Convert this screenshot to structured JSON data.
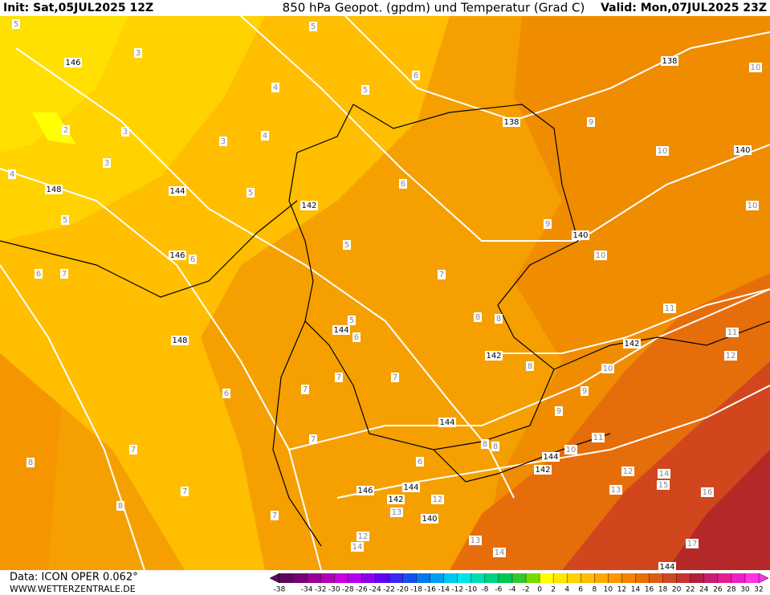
{
  "header": {
    "init": "Init: Sat,05JUL2025 12Z",
    "title": "850 hPa Geopot. (gpdm) und Temperatur (Grad C)",
    "valid": "Valid: Mon,07JUL2025 23Z"
  },
  "footer": {
    "model": "Data: ICON OPER 0.062°",
    "site": "WWW.WETTERZENTRALE.DE"
  },
  "color_scale": {
    "range": [
      -38,
      32
    ],
    "ticks": [
      -38,
      -34,
      -32,
      -30,
      -28,
      -26,
      -24,
      -22,
      -20,
      -18,
      -16,
      -14,
      -12,
      -10,
      -8,
      -6,
      -4,
      -2,
      0,
      2,
      4,
      6,
      8,
      10,
      12,
      14,
      16,
      18,
      20,
      22,
      24,
      26,
      28,
      30,
      32
    ],
    "colors": [
      "#5a0a5a",
      "#78007a",
      "#960096",
      "#b400b4",
      "#c800dc",
      "#b400f0",
      "#8c00f0",
      "#6400f0",
      "#3c28f0",
      "#1450f0",
      "#0078f0",
      "#00a0f0",
      "#00c8f0",
      "#00e6e6",
      "#00dcb4",
      "#00d282",
      "#00c850",
      "#32c832",
      "#78dc00",
      "#ffff00",
      "#ffe600",
      "#ffd200",
      "#ffbe00",
      "#ffaa00",
      "#ff9600",
      "#f58200",
      "#eb6e00",
      "#e15a14",
      "#d24628",
      "#c83232",
      "#b41e3c",
      "#c81e6e",
      "#e61e96",
      "#f01ec8",
      "#ff32e6"
    ]
  },
  "geopotential_labels": [
    146,
    148,
    144,
    146,
    148,
    142,
    144,
    142,
    144,
    144,
    142,
    146,
    144,
    142,
    140,
    140,
    138,
    138,
    140,
    142,
    144
  ],
  "temperature_labels": [
    5,
    3,
    4,
    2,
    3,
    3,
    4,
    3,
    4,
    5,
    5,
    5,
    5,
    5,
    5,
    6,
    6,
    6,
    6,
    7,
    6,
    7,
    8,
    8,
    8,
    9,
    9,
    9,
    9,
    7,
    7,
    7,
    6,
    7,
    7,
    7,
    8,
    7,
    8,
    10,
    10,
    10,
    10,
    10,
    10,
    11,
    11,
    12,
    11,
    12,
    13,
    14,
    15,
    16,
    12,
    13,
    14,
    17,
    13,
    12,
    14,
    6,
    8,
    8
  ]
}
